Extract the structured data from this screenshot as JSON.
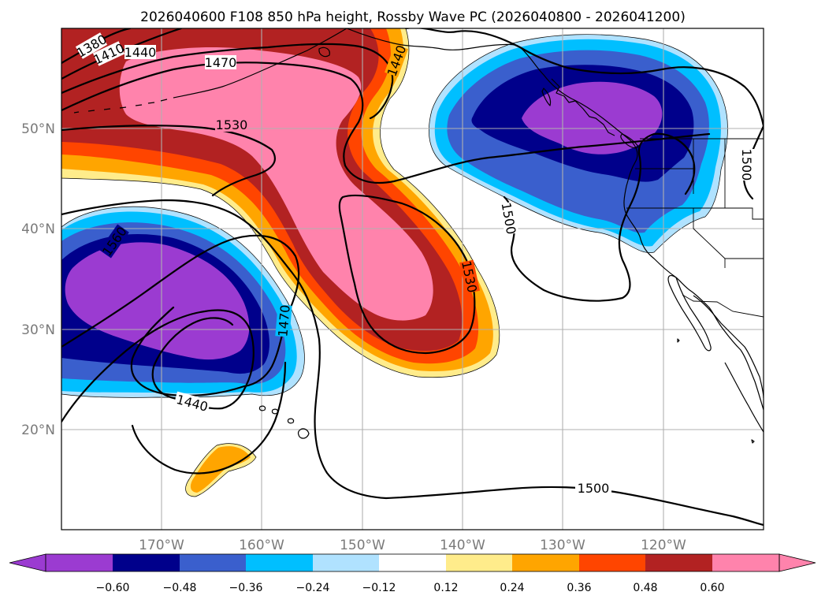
{
  "figure": {
    "title": "2026040600 F108 850 hPa height, Rossby Wave PC (2026040800 - 2026041200)"
  },
  "map": {
    "projection": "PlateCarree",
    "lon_range": [
      -180,
      -110
    ],
    "lat_range": [
      10,
      60
    ],
    "lat_labels": [
      "50°N",
      "40°N",
      "30°N",
      "20°N"
    ],
    "lon_labels": [
      "170°W",
      "160°W",
      "150°W",
      "140°W",
      "130°W",
      "120°W"
    ],
    "height_contours_gpm": [
      {
        "value": 1380,
        "label": "1380"
      },
      {
        "value": 1410,
        "label": "1410"
      },
      {
        "value": 1440,
        "label": "1440"
      },
      {
        "value": 1470,
        "label": "1470"
      },
      {
        "value": 1500,
        "label": "1500"
      },
      {
        "value": 1530,
        "label": "1530"
      }
    ],
    "contour_labels": [
      "1380",
      "1410",
      "1440",
      "1470",
      "1530",
      "1440",
      "1500",
      "1530",
      "1500",
      "1470",
      "1560",
      "1440",
      "1500"
    ]
  },
  "colorbar": {
    "tick_labels": [
      "−0.60",
      "−0.48",
      "−0.36",
      "−0.24",
      "−0.12",
      "0.12",
      "0.24",
      "0.36",
      "0.48",
      "0.60"
    ],
    "colors": [
      "#9b3bd1",
      "#00008b",
      "#3a5fcd",
      "#00bfff",
      "#b0e2ff",
      "#ffffff",
      "#ffec8b",
      "#ffa500",
      "#ff4500",
      "#b22222",
      "#ff83ac",
      "#ff83ac"
    ]
  },
  "fill_colors": {
    "neg_1": "#b0e2ff",
    "neg_2": "#00bfff",
    "neg_3": "#3a5fcd",
    "neg_4": "#00008b",
    "neg_5": "#9b3bd1",
    "pos_1": "#ffec8b",
    "pos_2": "#ffa500",
    "pos_3": "#ff4500",
    "pos_4": "#b22222",
    "pos_5": "#ff83ac"
  }
}
